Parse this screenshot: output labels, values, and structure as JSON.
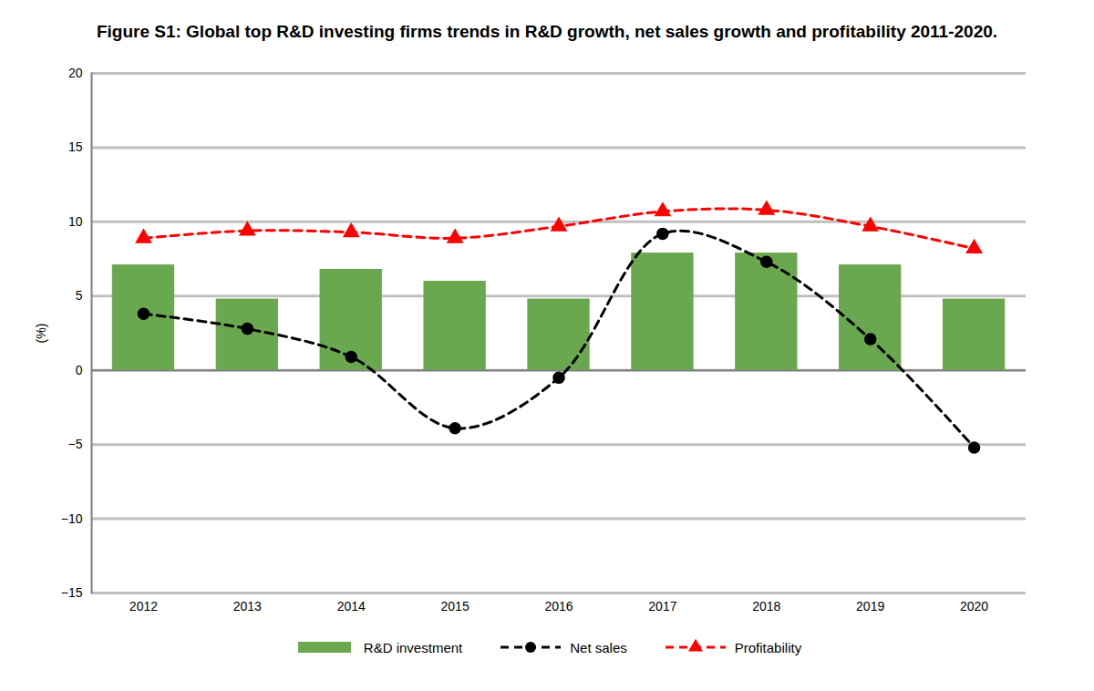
{
  "chart_data": {
    "type": "bar",
    "title": "Figure S1: Global top R&D investing firms trends in R&D growth, net sales growth and profitability 2011-2020.",
    "y_label": "(%)",
    "categories": [
      "2012",
      "2013",
      "2014",
      "2015",
      "2016",
      "2017",
      "2018",
      "2019",
      "2020"
    ],
    "series": [
      {
        "name": "R&D investment",
        "type": "bar",
        "color": "#6aa84f",
        "values": [
          7.1,
          4.8,
          6.8,
          6.0,
          4.8,
          7.9,
          7.9,
          7.1,
          4.8
        ]
      },
      {
        "name": "Net sales",
        "type": "line",
        "color": "#000000",
        "marker": "circle",
        "line_style": "dashed",
        "values": [
          3.8,
          2.8,
          0.9,
          -3.9,
          -0.5,
          9.2,
          7.3,
          2.1,
          -5.2
        ]
      },
      {
        "name": "Profitability",
        "type": "line",
        "color": "#ff0000",
        "marker": "triangle",
        "line_style": "dashed",
        "values": [
          8.9,
          9.4,
          9.3,
          8.9,
          9.7,
          10.7,
          10.8,
          9.7,
          8.2
        ]
      }
    ],
    "ylim": [
      -15,
      20
    ],
    "yticks": [
      -15,
      -10,
      -5,
      0,
      5,
      10,
      15,
      20
    ],
    "grid": true,
    "legend": "bottom"
  }
}
